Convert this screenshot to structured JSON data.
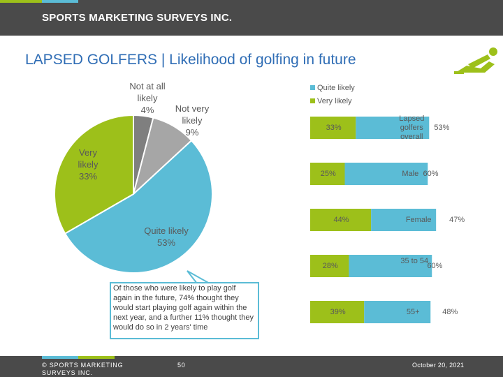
{
  "brand": "SPORTS MARKETING SURVEYS INC.",
  "title": "LAPSED GOLFERS | Likelihood of golfing in future",
  "logo_icon": "golfer-silhouette-icon",
  "colors": {
    "quite_likely": "#5bbcd6",
    "very_likely": "#9dc01a",
    "not_very_likely": "#a6a6a6",
    "not_at_all_likely": "#7f7f7f",
    "header": "#4a4a4a",
    "title": "#2f6db5"
  },
  "callout": "Of those who were likely to play golf again in the future, 74% thought they would start playing golf again within the next year, and a further 11% thought they would do so in 2 years' time",
  "footer": {
    "copyright": "© SPORTS MARKETING SURVEYS INC.",
    "page": "50",
    "date": "October 20, 2021"
  },
  "chart_data": [
    {
      "type": "pie",
      "slices": [
        {
          "label": "Not at all likely",
          "value": 4,
          "display": "4%"
        },
        {
          "label": "Not very likely",
          "value": 9,
          "display": "9%"
        },
        {
          "label": "Quite likely",
          "value": 53,
          "display": "53%"
        },
        {
          "label": "Very likely",
          "value": 33,
          "display": "33%"
        }
      ]
    },
    {
      "type": "bar",
      "orientation": "horizontal",
      "stacked": true,
      "categories": [
        "Lapsed golfers overall",
        "Male",
        "Female",
        "35 to 54",
        "55+"
      ],
      "legend": [
        "Quite likely",
        "Very likely"
      ],
      "series": [
        {
          "name": "Quite likely",
          "values": [
            53,
            60,
            47,
            60,
            48
          ],
          "labels": [
            "53%",
            "60%",
            "47%",
            "60%",
            "48%"
          ]
        },
        {
          "name": "Very likely",
          "values": [
            33,
            25,
            44,
            28,
            39
          ],
          "labels": [
            "33%",
            "25%",
            "44%",
            "28%",
            "39%"
          ]
        }
      ]
    }
  ]
}
